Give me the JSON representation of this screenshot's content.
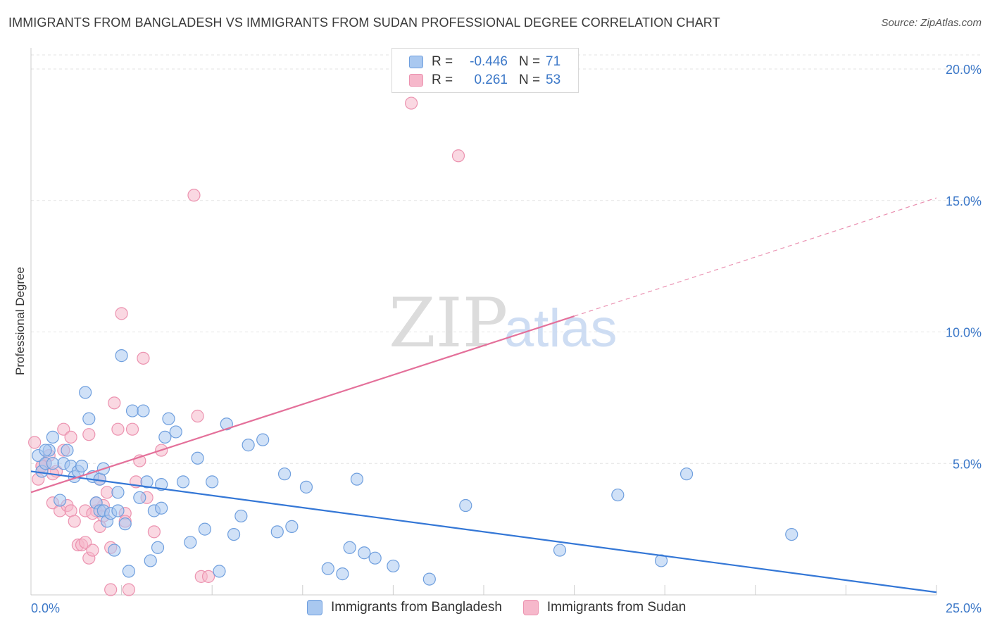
{
  "title": "IMMIGRANTS FROM BANGLADESH VS IMMIGRANTS FROM SUDAN PROFESSIONAL DEGREE CORRELATION CHART",
  "source": "Source: ZipAtlas.com",
  "watermark": {
    "zip": "ZIP",
    "atlas": "atlas"
  },
  "colors": {
    "blue_fill": "#a9c8f0",
    "blue_stroke": "#6f9fde",
    "blue_line": "#3477d6",
    "pink_fill": "#f6b8cb",
    "pink_stroke": "#ec93b0",
    "pink_line": "#e4709a",
    "tick_text": "#3c78c8",
    "grid": "#e3e3e3"
  },
  "legend": {
    "rows": [
      {
        "r_label": "R =",
        "r_value": "-0.446",
        "n_label": "N =",
        "n_value": "71"
      },
      {
        "r_label": "R =",
        "r_value": "0.261",
        "n_label": "N =",
        "n_value": "53"
      }
    ]
  },
  "bottom_legend": {
    "blue": "Immigrants from Bangladesh",
    "pink": "Immigrants from Sudan"
  },
  "chart_data": {
    "type": "scatter",
    "title": "IMMIGRANTS FROM BANGLADESH VS IMMIGRANTS FROM SUDAN PROFESSIONAL DEGREE CORRELATION CHART",
    "xlabel": "",
    "ylabel": "Professional Degree",
    "xlim": [
      0,
      25
    ],
    "ylim": [
      0,
      20
    ],
    "x_tick_labels": [
      "0.0%",
      "25.0%"
    ],
    "y_tick_labels": [
      "5.0%",
      "10.0%",
      "15.0%",
      "20.0%"
    ],
    "y_ticks": [
      5,
      10,
      15,
      20
    ],
    "grid": true,
    "legend_placement": "top-center",
    "series": [
      {
        "name": "Immigrants from Bangladesh",
        "color": "#a9c8f0",
        "x": [
          0.2,
          0.3,
          0.4,
          0.5,
          0.6,
          0.8,
          0.9,
          1.0,
          1.1,
          1.2,
          1.3,
          1.4,
          1.5,
          1.6,
          1.7,
          1.8,
          1.9,
          2.0,
          2.1,
          2.2,
          2.3,
          2.4,
          2.5,
          2.6,
          2.7,
          2.8,
          3.0,
          3.1,
          3.2,
          3.3,
          3.4,
          3.5,
          3.6,
          3.7,
          3.8,
          4.0,
          4.2,
          4.4,
          4.6,
          4.8,
          5.0,
          5.2,
          5.4,
          5.6,
          5.8,
          6.0,
          6.4,
          6.8,
          7.0,
          7.2,
          7.6,
          8.2,
          8.6,
          8.8,
          9.0,
          9.2,
          9.5,
          10.0,
          11.0,
          12.0,
          14.6,
          16.2,
          17.4,
          18.1,
          21.0,
          0.4,
          0.6,
          1.9,
          2.4,
          3.6,
          2.0
        ],
        "y": [
          5.3,
          4.7,
          5.0,
          5.5,
          6.0,
          3.6,
          5.0,
          5.5,
          4.9,
          4.5,
          4.7,
          4.9,
          7.7,
          6.7,
          4.5,
          3.5,
          3.2,
          3.2,
          2.8,
          3.1,
          1.7,
          3.2,
          9.1,
          2.7,
          0.9,
          7.0,
          3.7,
          7.0,
          4.3,
          1.3,
          3.2,
          1.8,
          4.2,
          6.0,
          6.7,
          6.2,
          4.3,
          2.0,
          5.2,
          2.5,
          4.3,
          0.9,
          6.5,
          2.3,
          3.0,
          5.7,
          5.9,
          2.4,
          4.6,
          2.6,
          4.1,
          1.0,
          0.8,
          1.8,
          4.4,
          1.6,
          1.4,
          1.1,
          0.6,
          3.4,
          1.7,
          3.8,
          1.3,
          4.6,
          2.3,
          5.5,
          5.0,
          4.4,
          3.9,
          3.3,
          4.8
        ]
      },
      {
        "name": "Immigrants from Sudan",
        "color": "#f6b8cb",
        "x": [
          0.1,
          0.2,
          0.3,
          0.4,
          0.5,
          0.6,
          0.7,
          0.8,
          0.9,
          1.0,
          1.1,
          1.2,
          1.3,
          1.4,
          1.5,
          1.6,
          1.7,
          1.8,
          1.9,
          2.0,
          2.1,
          2.2,
          2.3,
          2.4,
          2.5,
          2.6,
          2.7,
          2.8,
          2.9,
          3.0,
          3.1,
          3.2,
          3.4,
          3.6,
          4.5,
          4.6,
          4.7,
          4.9,
          10.5,
          11.8,
          0.4,
          0.6,
          0.9,
          1.1,
          1.5,
          1.6,
          1.7,
          1.8,
          2.0,
          2.2,
          1.9,
          2.6,
          0.3
        ],
        "y": [
          5.8,
          4.4,
          4.9,
          5.0,
          5.3,
          3.5,
          4.7,
          3.2,
          5.5,
          3.4,
          3.2,
          2.8,
          1.9,
          1.9,
          2.0,
          1.4,
          1.7,
          3.2,
          2.6,
          3.4,
          3.9,
          0.2,
          7.3,
          6.3,
          10.7,
          3.1,
          0.2,
          6.3,
          4.3,
          5.1,
          9.0,
          3.7,
          2.4,
          5.5,
          15.2,
          6.8,
          0.7,
          0.7,
          18.7,
          16.7,
          5.0,
          4.6,
          6.3,
          6.0,
          3.2,
          6.1,
          3.1,
          3.5,
          3.0,
          1.8,
          4.4,
          2.8,
          4.9
        ]
      }
    ],
    "trend_lines": [
      {
        "series": "Immigrants from Bangladesh",
        "x": [
          0,
          25
        ],
        "y": [
          4.7,
          0.1
        ]
      },
      {
        "series": "Immigrants from Sudan",
        "x": [
          0,
          15
        ],
        "y": [
          3.9,
          10.6
        ],
        "dashed_extension": {
          "x": [
            15,
            25
          ],
          "y": [
            10.6,
            15.1
          ]
        }
      }
    ]
  }
}
